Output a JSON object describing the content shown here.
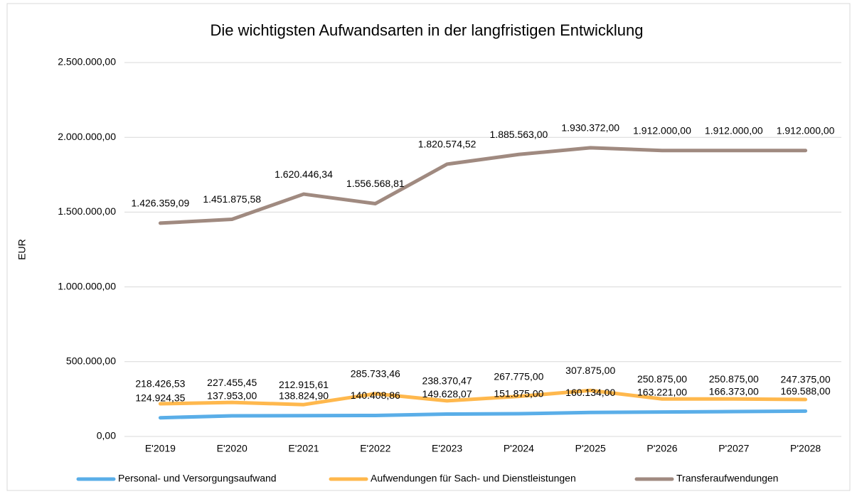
{
  "chart_data": {
    "type": "line",
    "title": "Die wichtigsten Aufwandsarten in der langfristigen Entwicklung",
    "ylabel": "EUR",
    "categories": [
      "E'2019",
      "E'2020",
      "E'2021",
      "E'2022",
      "E'2023",
      "P'2024",
      "P'2025",
      "P'2026",
      "P'2027",
      "P'2028"
    ],
    "series": [
      {
        "name": "Personal- und Versorgungsaufwand",
        "color": "#5aaee8",
        "values": [
          124924.35,
          137953.0,
          138824.9,
          140408.86,
          149628.07,
          151875.0,
          160134.0,
          163221.0,
          166373.0,
          169588.0
        ],
        "value_labels": [
          "124.924,35",
          "137.953,00",
          "138.824,90",
          "140.408,86",
          "149.628,07",
          "151.875,00",
          "160.134,00",
          "163.221,00",
          "166.373,00",
          "169.588,00"
        ]
      },
      {
        "name": "Aufwendungen für Sach- und Dienstleistungen",
        "color": "#ffb84d",
        "values": [
          218426.53,
          227455.45,
          212915.61,
          285733.46,
          238370.47,
          267775.0,
          307875.0,
          250875.0,
          250875.0,
          247375.0
        ],
        "value_labels": [
          "218.426,53",
          "227.455,45",
          "212.915,61",
          "285.733,46",
          "238.370,47",
          "267.775,00",
          "307.875,00",
          "250.875,00",
          "250.875,00",
          "247.375,00"
        ]
      },
      {
        "name": "Transferaufwendungen",
        "color": "#a08a80",
        "values": [
          1426359.09,
          1451875.58,
          1620446.34,
          1556568.81,
          1820574.52,
          1885563.0,
          1930372.0,
          1912000.0,
          1912000.0,
          1912000.0
        ],
        "value_labels": [
          "1.426.359,09",
          "1.451.875,58",
          "1.620.446,34",
          "1.556.568,81",
          "1.820.574,52",
          "1.885.563,00",
          "1.930.372,00",
          "1.912.000,00",
          "1.912.000,00",
          "1.912.000,00"
        ]
      }
    ],
    "ylim": [
      0,
      2500000
    ],
    "yticks": [
      {
        "value": 0,
        "label": "0,00"
      },
      {
        "value": 500000,
        "label": "500.000,00"
      },
      {
        "value": 1000000,
        "label": "1.000.000,00"
      },
      {
        "value": 1500000,
        "label": "1.500.000,00"
      },
      {
        "value": 2000000,
        "label": "2.000.000,00"
      },
      {
        "value": 2500000,
        "label": "2.500.000,00"
      }
    ],
    "grid": true,
    "legend": "bottom"
  }
}
